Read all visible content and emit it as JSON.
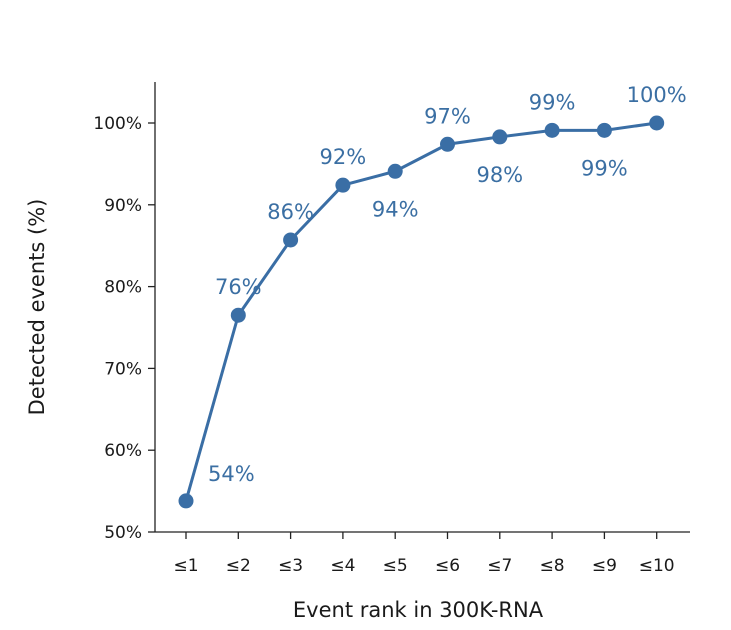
{
  "chart_data": {
    "type": "line",
    "title": "",
    "xlabel": "Event rank in 300K-RNA",
    "ylabel": "Detected events (%)",
    "categories": [
      "≤1",
      "≤2",
      "≤3",
      "≤4",
      "≤5",
      "≤6",
      "≤7",
      "≤8",
      "≤9",
      "≤10"
    ],
    "values": [
      53.8,
      76.5,
      85.7,
      92.4,
      94.1,
      97.4,
      98.3,
      99.1,
      99.1,
      100.0
    ],
    "data_labels": [
      "54%",
      "76%",
      "86%",
      "92%",
      "94%",
      "97%",
      "98%",
      "99%",
      "99%",
      "100%"
    ],
    "label_positions": [
      "right",
      "above",
      "above",
      "above",
      "below",
      "above",
      "below",
      "above",
      "below",
      "above"
    ],
    "yticks": [
      50,
      60,
      70,
      80,
      90,
      100
    ],
    "ytick_labels": [
      "50%",
      "60%",
      "70%",
      "80%",
      "90%",
      "100%"
    ],
    "ylim": [
      50,
      102
    ],
    "grid": false,
    "legend": "none",
    "colors": {
      "line": "#3a6ea5",
      "marker": "#3a6ea5",
      "label": "#3b6fa3",
      "axis": "#222222"
    }
  }
}
